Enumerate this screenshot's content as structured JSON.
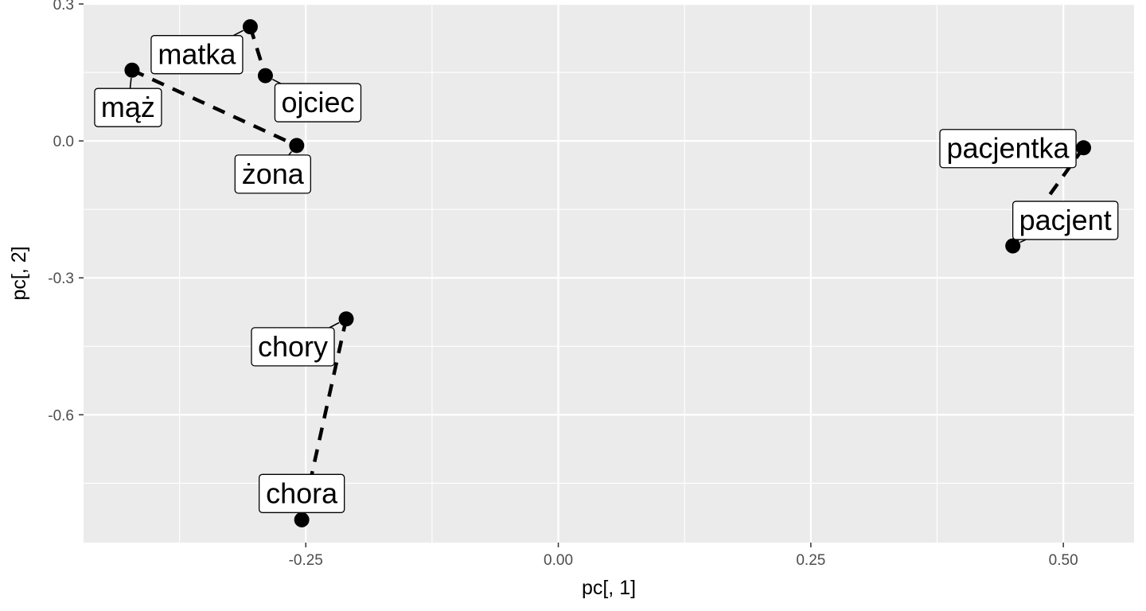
{
  "chart_data": {
    "type": "scatter",
    "xlabel": "pc[, 1]",
    "ylabel": "pc[, 2]",
    "xlim": [
      -0.47,
      0.57
    ],
    "ylim": [
      -0.88,
      0.3
    ],
    "xticks": [
      -0.25,
      0.0,
      0.25,
      0.5
    ],
    "xtick_labels": [
      "-0.25",
      "0.00",
      "0.25",
      "0.50"
    ],
    "yticks": [
      0.3,
      0.0,
      -0.3,
      -0.6
    ],
    "ytick_labels": [
      "0.3",
      "0.0",
      "-0.3",
      "-0.6"
    ],
    "grid": true,
    "points": [
      {
        "label": "matka",
        "x": -0.305,
        "y": 0.25
      },
      {
        "label": "ojciec",
        "x": -0.29,
        "y": 0.143
      },
      {
        "label": "mąż",
        "x": -0.422,
        "y": 0.155
      },
      {
        "label": "żona",
        "x": -0.259,
        "y": -0.01
      },
      {
        "label": "pacjentka",
        "x": 0.52,
        "y": -0.015
      },
      {
        "label": "pacjent",
        "x": 0.45,
        "y": -0.23
      },
      {
        "label": "chory",
        "x": -0.21,
        "y": -0.39
      },
      {
        "label": "chora",
        "x": -0.254,
        "y": -0.83
      }
    ],
    "pairs": [
      [
        "matka",
        "ojciec"
      ],
      [
        "mąż",
        "żona"
      ],
      [
        "pacjentka",
        "pacjent"
      ],
      [
        "chory",
        "chora"
      ]
    ],
    "colors": {
      "panel": "#ebebeb",
      "grid": "#ffffff",
      "point": "#000000",
      "line": "#000000"
    }
  }
}
